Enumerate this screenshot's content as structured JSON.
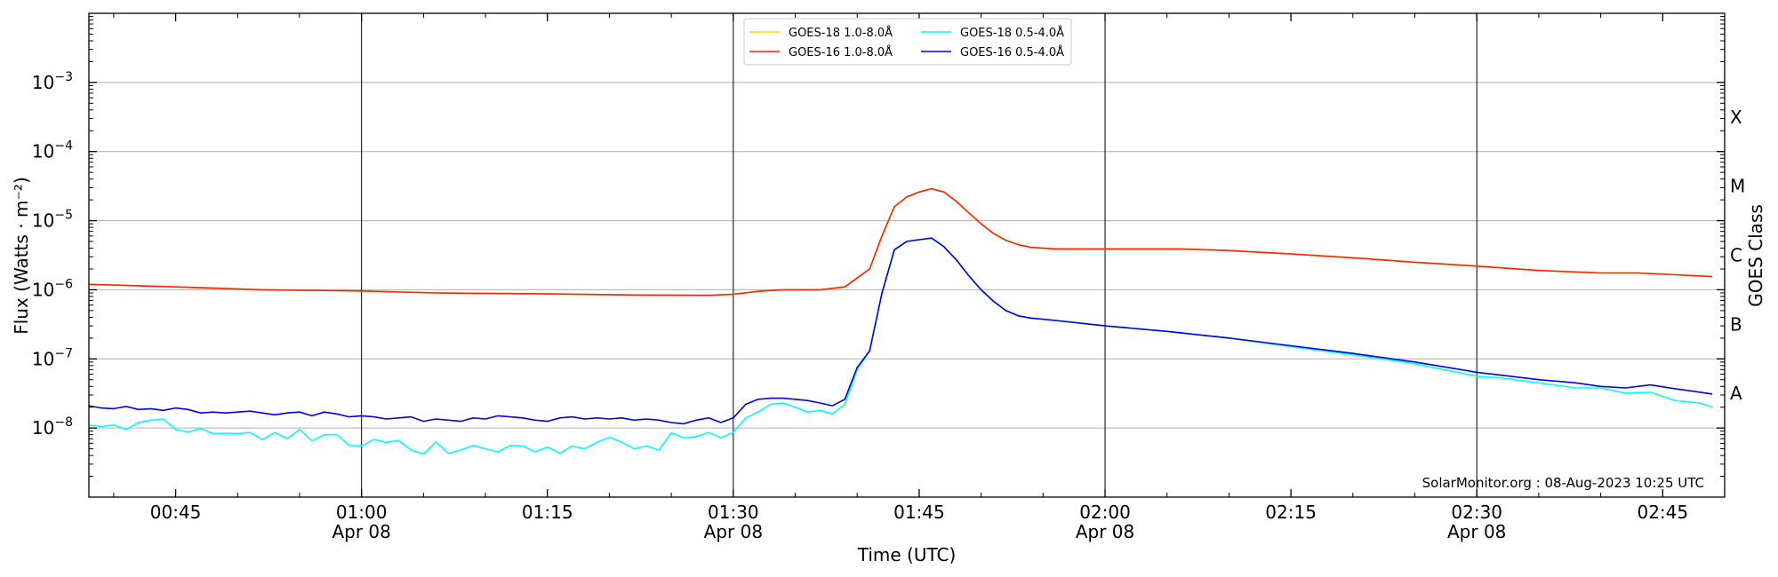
{
  "chart_data": {
    "type": "line",
    "xlabel": "Time (UTC)",
    "ylabel": "Flux (Watts · m⁻²)",
    "ylabel_right": "GOES Class",
    "credit": "SolarMonitor.org : 08-Aug-2023 10:25 UTC",
    "x_unit": "minutes since 00:00 UTC Apr 08",
    "xlim": [
      38,
      170
    ],
    "ylim_log10": [
      -9,
      -2
    ],
    "y_scale": "log",
    "grid": "horizontal at decades, vertical at half-hours",
    "x_ticks": [
      {
        "x": 45,
        "label": "00:45",
        "sub": ""
      },
      {
        "x": 60,
        "label": "01:00",
        "sub": "Apr 08"
      },
      {
        "x": 75,
        "label": "01:15",
        "sub": ""
      },
      {
        "x": 90,
        "label": "01:30",
        "sub": "Apr 08"
      },
      {
        "x": 105,
        "label": "01:45",
        "sub": ""
      },
      {
        "x": 120,
        "label": "02:00",
        "sub": "Apr 08"
      },
      {
        "x": 135,
        "label": "02:15",
        "sub": ""
      },
      {
        "x": 150,
        "label": "02:30",
        "sub": "Apr 08"
      },
      {
        "x": 165,
        "label": "02:45",
        "sub": ""
      }
    ],
    "y_ticks": [
      {
        "exp": -8,
        "base": "10",
        "power": "−8"
      },
      {
        "exp": -7,
        "base": "10",
        "power": "−7"
      },
      {
        "exp": -6,
        "base": "10",
        "power": "−6"
      },
      {
        "exp": -5,
        "base": "10",
        "power": "−5"
      },
      {
        "exp": -4,
        "base": "10",
        "power": "−4"
      },
      {
        "exp": -3,
        "base": "10",
        "power": "−3"
      }
    ],
    "goes_classes": [
      {
        "label": "X",
        "log10": -3.5
      },
      {
        "label": "M",
        "log10": -4.5
      },
      {
        "label": "C",
        "log10": -5.5
      },
      {
        "label": "B",
        "log10": -6.5
      },
      {
        "label": "A",
        "log10": -7.5
      }
    ],
    "legend": [
      {
        "name": "GOES-18 1.0-8.0Å",
        "color": "#ffd700"
      },
      {
        "name": "GOES-18 0.5-4.0Å",
        "color": "#00ffff"
      },
      {
        "name": "GOES-16 1.0-8.0Å",
        "color": "#ff2200"
      },
      {
        "name": "GOES-16 0.5-4.0Å",
        "color": "#0000ee"
      }
    ],
    "series": [
      {
        "name": "GOES-18 1.0-8.0Å",
        "color": "#ffd700",
        "points": [
          [
            38,
            1.2e-06
          ],
          [
            45,
            1.1e-06
          ],
          [
            52,
            1e-06
          ],
          [
            60,
            9.6e-07
          ],
          [
            66,
            9e-07
          ],
          [
            75,
            8.7e-07
          ],
          [
            82,
            8.4e-07
          ],
          [
            88,
            8.3e-07
          ],
          [
            90,
            8.6e-07
          ],
          [
            92,
            9.5e-07
          ],
          [
            94,
            1e-06
          ],
          [
            97,
            1e-06
          ],
          [
            99,
            1.1e-06
          ],
          [
            101,
            2e-06
          ],
          [
            102,
            6e-06
          ],
          [
            103,
            1.6e-05
          ],
          [
            104,
            2.2e-05
          ],
          [
            105,
            2.6e-05
          ],
          [
            106,
            2.9e-05
          ],
          [
            107,
            2.6e-05
          ],
          [
            108,
            1.9e-05
          ],
          [
            109,
            1.3e-05
          ],
          [
            110,
            9e-06
          ],
          [
            111,
            6.5e-06
          ],
          [
            112,
            5.2e-06
          ],
          [
            113,
            4.5e-06
          ],
          [
            114,
            4.1e-06
          ],
          [
            116,
            3.9e-06
          ],
          [
            120,
            3.9e-06
          ],
          [
            126,
            3.9e-06
          ],
          [
            130,
            3.7e-06
          ],
          [
            135,
            3.3e-06
          ],
          [
            140,
            2.9e-06
          ],
          [
            145,
            2.5e-06
          ],
          [
            150,
            2.2e-06
          ],
          [
            155,
            1.9e-06
          ],
          [
            160,
            1.75e-06
          ],
          [
            163,
            1.75e-06
          ],
          [
            166,
            1.65e-06
          ],
          [
            169,
            1.55e-06
          ]
        ]
      },
      {
        "name": "GOES-16 1.0-8.0Å",
        "color": "#ff2200",
        "points": [
          [
            38,
            1.2e-06
          ],
          [
            45,
            1.1e-06
          ],
          [
            52,
            1e-06
          ],
          [
            60,
            9.6e-07
          ],
          [
            66,
            9e-07
          ],
          [
            75,
            8.7e-07
          ],
          [
            82,
            8.4e-07
          ],
          [
            88,
            8.3e-07
          ],
          [
            90,
            8.6e-07
          ],
          [
            92,
            9.5e-07
          ],
          [
            94,
            1e-06
          ],
          [
            97,
            1e-06
          ],
          [
            99,
            1.1e-06
          ],
          [
            101,
            2e-06
          ],
          [
            102,
            6e-06
          ],
          [
            103,
            1.6e-05
          ],
          [
            104,
            2.2e-05
          ],
          [
            105,
            2.6e-05
          ],
          [
            106,
            2.9e-05
          ],
          [
            107,
            2.6e-05
          ],
          [
            108,
            1.9e-05
          ],
          [
            109,
            1.3e-05
          ],
          [
            110,
            9e-06
          ],
          [
            111,
            6.5e-06
          ],
          [
            112,
            5.2e-06
          ],
          [
            113,
            4.5e-06
          ],
          [
            114,
            4.1e-06
          ],
          [
            116,
            3.9e-06
          ],
          [
            120,
            3.9e-06
          ],
          [
            126,
            3.9e-06
          ],
          [
            130,
            3.7e-06
          ],
          [
            135,
            3.3e-06
          ],
          [
            140,
            2.9e-06
          ],
          [
            145,
            2.5e-06
          ],
          [
            150,
            2.2e-06
          ],
          [
            155,
            1.9e-06
          ],
          [
            160,
            1.75e-06
          ],
          [
            163,
            1.75e-06
          ],
          [
            166,
            1.65e-06
          ],
          [
            169,
            1.55e-06
          ]
        ]
      },
      {
        "name": "GOES-18 0.5-4.0Å",
        "color": "#00ffff",
        "points": [
          [
            38,
            1.1e-08
          ],
          [
            39,
            1.05e-08
          ],
          [
            40,
            1.1e-08
          ],
          [
            41,
            9.5e-09
          ],
          [
            42,
            1.2e-08
          ],
          [
            43,
            1.3e-08
          ],
          [
            44,
            1.35e-08
          ],
          [
            45,
            9.5e-09
          ],
          [
            46,
            8.8e-09
          ],
          [
            47,
            9.8e-09
          ],
          [
            48,
            8.3e-09
          ],
          [
            49,
            8.4e-09
          ],
          [
            50,
            8.3e-09
          ],
          [
            51,
            8.6e-09
          ],
          [
            52,
            6.8e-09
          ],
          [
            53,
            8.6e-09
          ],
          [
            54,
            7e-09
          ],
          [
            55,
            9.5e-09
          ],
          [
            56,
            6.5e-09
          ],
          [
            57,
            8e-09
          ],
          [
            58,
            8e-09
          ],
          [
            59,
            5.6e-09
          ],
          [
            60,
            5.5e-09
          ],
          [
            61,
            6.8e-09
          ],
          [
            62,
            6.2e-09
          ],
          [
            63,
            6.6e-09
          ],
          [
            64,
            4.8e-09
          ],
          [
            65,
            4.2e-09
          ],
          [
            66,
            6.3e-09
          ],
          [
            67,
            4.3e-09
          ],
          [
            68,
            4.8e-09
          ],
          [
            69,
            5.6e-09
          ],
          [
            70,
            5e-09
          ],
          [
            71,
            4.5e-09
          ],
          [
            72,
            5.6e-09
          ],
          [
            73,
            5.5e-09
          ],
          [
            74,
            4.5e-09
          ],
          [
            75,
            5.3e-09
          ],
          [
            76,
            4.3e-09
          ],
          [
            77,
            5.5e-09
          ],
          [
            78,
            5e-09
          ],
          [
            79,
            6.2e-09
          ],
          [
            80,
            7.3e-09
          ],
          [
            81,
            6.2e-09
          ],
          [
            82,
            5e-09
          ],
          [
            83,
            5.5e-09
          ],
          [
            84,
            4.8e-09
          ],
          [
            85,
            8.5e-09
          ],
          [
            86,
            7.2e-09
          ],
          [
            87,
            7.5e-09
          ],
          [
            88,
            8.6e-09
          ],
          [
            89,
            7.2e-09
          ],
          [
            90,
            8.6e-09
          ],
          [
            91,
            1.4e-08
          ],
          [
            92,
            1.7e-08
          ],
          [
            93,
            2.2e-08
          ],
          [
            94,
            2.3e-08
          ],
          [
            95,
            2e-08
          ],
          [
            96,
            1.7e-08
          ],
          [
            97,
            1.8e-08
          ],
          [
            98,
            1.6e-08
          ],
          [
            99,
            2.2e-08
          ],
          [
            100,
            7e-08
          ],
          [
            101,
            1.3e-07
          ],
          [
            102,
            9e-07
          ],
          [
            103,
            3.8e-06
          ],
          [
            104,
            5e-06
          ],
          [
            105,
            5.3e-06
          ],
          [
            106,
            5.6e-06
          ],
          [
            107,
            4.2e-06
          ],
          [
            108,
            2.7e-06
          ],
          [
            109,
            1.6e-06
          ],
          [
            110,
            1e-06
          ],
          [
            111,
            6.8e-07
          ],
          [
            112,
            5e-07
          ],
          [
            113,
            4.2e-07
          ],
          [
            114,
            3.9e-07
          ],
          [
            116,
            3.6e-07
          ],
          [
            120,
            3e-07
          ],
          [
            125,
            2.5e-07
          ],
          [
            130,
            2e-07
          ],
          [
            135,
            1.5e-07
          ],
          [
            140,
            1.15e-07
          ],
          [
            145,
            8.5e-08
          ],
          [
            150,
            5.6e-08
          ],
          [
            152,
            5.3e-08
          ],
          [
            155,
            4.5e-08
          ],
          [
            158,
            3.8e-08
          ],
          [
            160,
            3.8e-08
          ],
          [
            162,
            3.2e-08
          ],
          [
            164,
            3.3e-08
          ],
          [
            166,
            2.5e-08
          ],
          [
            168,
            2.3e-08
          ],
          [
            169,
            2e-08
          ]
        ]
      },
      {
        "name": "GOES-16 0.5-4.0Å",
        "color": "#0000ee",
        "points": [
          [
            38,
            2.1e-08
          ],
          [
            39,
            1.95e-08
          ],
          [
            40,
            1.9e-08
          ],
          [
            41,
            2.05e-08
          ],
          [
            42,
            1.85e-08
          ],
          [
            43,
            1.9e-08
          ],
          [
            44,
            1.8e-08
          ],
          [
            45,
            1.95e-08
          ],
          [
            46,
            1.85e-08
          ],
          [
            47,
            1.65e-08
          ],
          [
            48,
            1.7e-08
          ],
          [
            49,
            1.65e-08
          ],
          [
            50,
            1.7e-08
          ],
          [
            51,
            1.75e-08
          ],
          [
            52,
            1.65e-08
          ],
          [
            53,
            1.55e-08
          ],
          [
            54,
            1.65e-08
          ],
          [
            55,
            1.7e-08
          ],
          [
            56,
            1.5e-08
          ],
          [
            57,
            1.7e-08
          ],
          [
            58,
            1.6e-08
          ],
          [
            59,
            1.45e-08
          ],
          [
            60,
            1.5e-08
          ],
          [
            61,
            1.45e-08
          ],
          [
            62,
            1.35e-08
          ],
          [
            63,
            1.4e-08
          ],
          [
            64,
            1.45e-08
          ],
          [
            65,
            1.25e-08
          ],
          [
            66,
            1.35e-08
          ],
          [
            67,
            1.3e-08
          ],
          [
            68,
            1.25e-08
          ],
          [
            69,
            1.4e-08
          ],
          [
            70,
            1.35e-08
          ],
          [
            71,
            1.5e-08
          ],
          [
            72,
            1.45e-08
          ],
          [
            73,
            1.4e-08
          ],
          [
            74,
            1.3e-08
          ],
          [
            75,
            1.25e-08
          ],
          [
            76,
            1.4e-08
          ],
          [
            77,
            1.45e-08
          ],
          [
            78,
            1.35e-08
          ],
          [
            79,
            1.4e-08
          ],
          [
            80,
            1.35e-08
          ],
          [
            81,
            1.4e-08
          ],
          [
            82,
            1.3e-08
          ],
          [
            83,
            1.35e-08
          ],
          [
            84,
            1.3e-08
          ],
          [
            85,
            1.2e-08
          ],
          [
            86,
            1.15e-08
          ],
          [
            87,
            1.3e-08
          ],
          [
            88,
            1.4e-08
          ],
          [
            89,
            1.2e-08
          ],
          [
            90,
            1.4e-08
          ],
          [
            91,
            2.2e-08
          ],
          [
            92,
            2.6e-08
          ],
          [
            93,
            2.7e-08
          ],
          [
            94,
            2.7e-08
          ],
          [
            95,
            2.6e-08
          ],
          [
            96,
            2.5e-08
          ],
          [
            97,
            2.3e-08
          ],
          [
            98,
            2.1e-08
          ],
          [
            99,
            2.6e-08
          ],
          [
            100,
            7.5e-08
          ],
          [
            101,
            1.3e-07
          ],
          [
            102,
            9e-07
          ],
          [
            103,
            3.8e-06
          ],
          [
            104,
            5e-06
          ],
          [
            105,
            5.3e-06
          ],
          [
            106,
            5.6e-06
          ],
          [
            107,
            4.2e-06
          ],
          [
            108,
            2.7e-06
          ],
          [
            109,
            1.6e-06
          ],
          [
            110,
            1e-06
          ],
          [
            111,
            6.8e-07
          ],
          [
            112,
            5e-07
          ],
          [
            113,
            4.2e-07
          ],
          [
            114,
            3.9e-07
          ],
          [
            116,
            3.6e-07
          ],
          [
            120,
            3e-07
          ],
          [
            125,
            2.5e-07
          ],
          [
            130,
            2e-07
          ],
          [
            135,
            1.55e-07
          ],
          [
            140,
            1.2e-07
          ],
          [
            145,
            9e-08
          ],
          [
            150,
            6.4e-08
          ],
          [
            152,
            5.8e-08
          ],
          [
            155,
            5e-08
          ],
          [
            158,
            4.5e-08
          ],
          [
            160,
            4e-08
          ],
          [
            162,
            3.8e-08
          ],
          [
            164,
            4.2e-08
          ],
          [
            166,
            3.7e-08
          ],
          [
            168,
            3.3e-08
          ],
          [
            169,
            3.1e-08
          ]
        ]
      }
    ]
  }
}
